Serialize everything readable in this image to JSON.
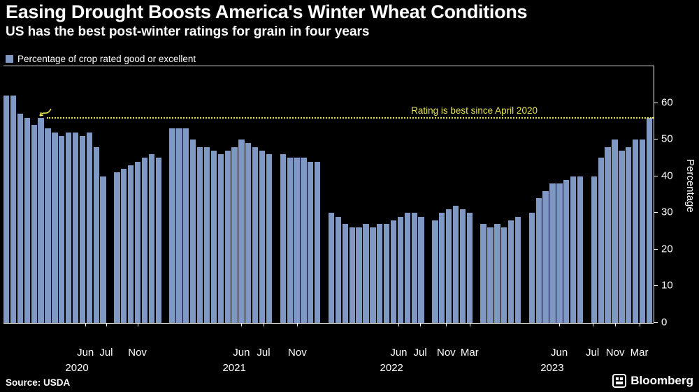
{
  "header": {
    "title": "Easing Drought Boosts America's Winter Wheat Conditions",
    "subtitle": "US has the best post-winter ratings for grain in four years"
  },
  "legend": {
    "label": "Percentage of crop rated good or excellent"
  },
  "annotation": {
    "text": "Rating is best since April 2020",
    "value": 56,
    "text_left_pct": 62.7
  },
  "colors": {
    "bar": "#7f99c4",
    "accent_yellow": "#e8e44c",
    "background": "#000000",
    "text": "#ffffff"
  },
  "y_axis": {
    "label": "Percentage",
    "ticks": [
      0,
      10,
      20,
      30,
      40,
      50,
      60
    ],
    "max": 70
  },
  "x_axis": {
    "month_labels": [
      {
        "label": "Jun",
        "pos": 12.6
      },
      {
        "label": "Jul",
        "pos": 15.8
      },
      {
        "label": "Nov",
        "pos": 20.6
      },
      {
        "label": "Jun",
        "pos": 36.6
      },
      {
        "label": "Jul",
        "pos": 40.0
      },
      {
        "label": "Nov",
        "pos": 45.2
      },
      {
        "label": "Jun",
        "pos": 60.8
      },
      {
        "label": "Jul",
        "pos": 64.1
      },
      {
        "label": "Nov",
        "pos": 68.1
      },
      {
        "label": "Mar",
        "pos": 71.7
      },
      {
        "label": "Jun",
        "pos": 85.5
      },
      {
        "label": "Jul",
        "pos": 90.6
      },
      {
        "label": "Nov",
        "pos": 94.1
      },
      {
        "label": "Mar",
        "pos": 97.8
      }
    ],
    "year_labels": [
      {
        "label": "2020",
        "pos": 11.3
      },
      {
        "label": "2021",
        "pos": 35.5
      },
      {
        "label": "2022",
        "pos": 59.7
      },
      {
        "label": "2023",
        "pos": 84.4
      }
    ]
  },
  "chart_data": {
    "type": "bar",
    "title": "Easing Drought Boosts America's Winter Wheat Conditions",
    "subtitle": "US has the best post-winter ratings for grain in four years",
    "series_name": "Percentage of crop rated good or excellent",
    "unit": "%",
    "x_description": "Weekly USDA winter wheat condition ratings, April 2020 through March; null entries are no-rating gaps between seasons",
    "ylim": [
      0,
      70
    ],
    "yticks": [
      0,
      10,
      20,
      30,
      40,
      50,
      60
    ],
    "reference_line": {
      "value": 56,
      "label": "Rating is best since April 2020"
    },
    "values": [
      62,
      62,
      57,
      56,
      54,
      56,
      53,
      52,
      51,
      52,
      52,
      51,
      52,
      48,
      40,
      null,
      41,
      42,
      43,
      44,
      45,
      46,
      45,
      null,
      53,
      53,
      53,
      50,
      48,
      48,
      47,
      46,
      47,
      48,
      50,
      49,
      48,
      47,
      46,
      null,
      46,
      45,
      45,
      45,
      44,
      44,
      null,
      30,
      29,
      27,
      26,
      26,
      27,
      26,
      27,
      27,
      28,
      29,
      30,
      30,
      29,
      null,
      28,
      30,
      31,
      32,
      31,
      30,
      null,
      27,
      26,
      27,
      26,
      28,
      29,
      null,
      30,
      34,
      36,
      38,
      38,
      39,
      40,
      40,
      null,
      40,
      45,
      48,
      50,
      47,
      48,
      50,
      50,
      56
    ]
  },
  "footer": {
    "source": "Source: USDA",
    "brand": "Bloomberg"
  }
}
